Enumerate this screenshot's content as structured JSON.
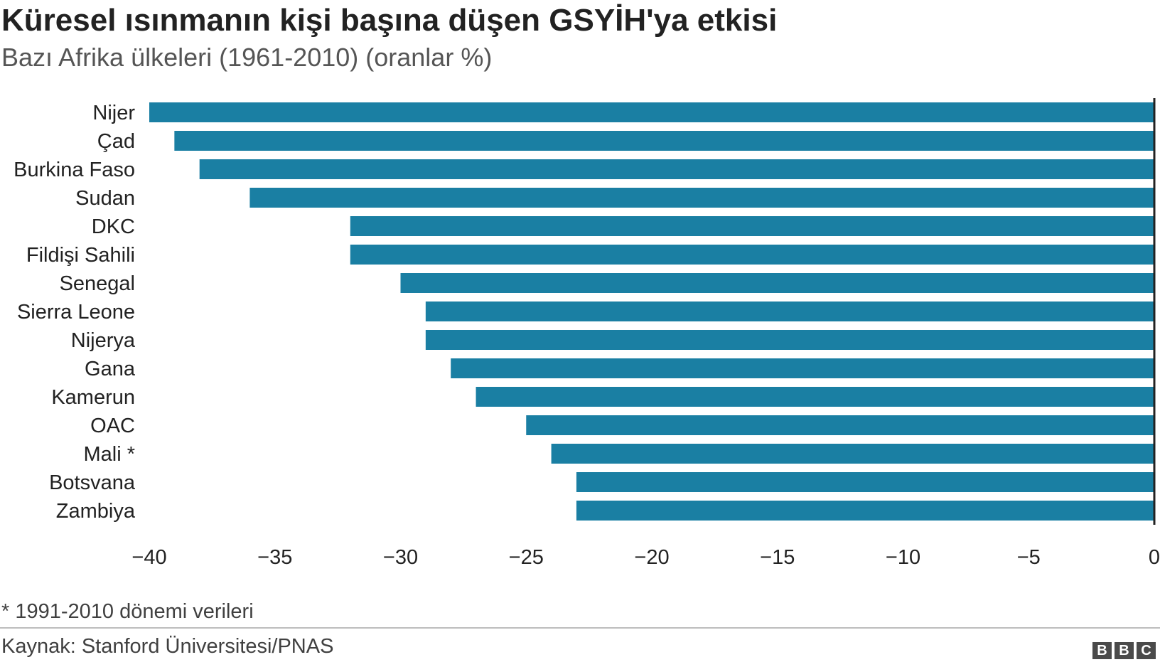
{
  "header": {
    "title": "Küresel ısınmanın kişi başına düşen GSYİH'ya etkisi",
    "subtitle": "Bazı Afrika ülkeleri (1961-2010) (oranlar %)"
  },
  "footer": {
    "note": "* 1991-2010 dönemi verileri",
    "source": "Kaynak: Stanford Üniversitesi/PNAS",
    "logo_letters": [
      "B",
      "B",
      "C"
    ]
  },
  "colors": {
    "bar": "#1a7fa3",
    "axis": "#222222"
  },
  "chart_data": {
    "type": "bar",
    "orientation": "horizontal",
    "title": "Küresel ısınmanın kişi başına düşen GSYİH'ya etkisi",
    "subtitle": "Bazı Afrika ülkeleri (1961-2010) (oranlar %)",
    "categories": [
      "Nijer",
      "Çad",
      "Burkina Faso",
      "Sudan",
      "DKC",
      "Fildişi Sahili",
      "Senegal",
      "Sierra Leone",
      "Nijerya",
      "Gana",
      "Kamerun",
      "OAC",
      "Mali *",
      "Botsvana",
      "Zambiya"
    ],
    "values": [
      -40,
      -39,
      -38,
      -36,
      -32,
      -32,
      -30,
      -29,
      -29,
      -28,
      -27,
      -25,
      -24,
      -23,
      -23
    ],
    "xlim": [
      -40,
      0
    ],
    "xticks": [
      -40,
      -35,
      -30,
      -25,
      -20,
      -15,
      -10,
      -5,
      0
    ],
    "xtick_labels": [
      "−40",
      "−35",
      "−30",
      "−25",
      "−20",
      "−15",
      "−10",
      "−5",
      "0"
    ],
    "grid": false,
    "legend": "none"
  }
}
